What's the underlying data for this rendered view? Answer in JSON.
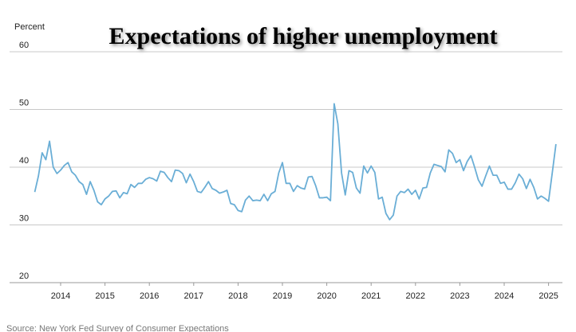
{
  "chart_data": {
    "type": "line",
    "title": "Expectations of higher unemployment",
    "y_label": "Percent",
    "source": "Source: New York Fed Survey of Consumer Expectations",
    "color": "#6aaed6",
    "grid": true,
    "ylim": [
      20,
      60
    ],
    "yticks": [
      20,
      30,
      40,
      50,
      60
    ],
    "categories": [
      null,
      null,
      null,
      null,
      null,
      null,
      null,
      "2014",
      null,
      null,
      null,
      null,
      null,
      null,
      null,
      null,
      null,
      null,
      null,
      "2015",
      null,
      null,
      null,
      null,
      null,
      null,
      null,
      null,
      null,
      null,
      null,
      "2016",
      null,
      null,
      null,
      null,
      null,
      null,
      null,
      null,
      null,
      null,
      null,
      "2017",
      null,
      null,
      null,
      null,
      null,
      null,
      null,
      null,
      null,
      null,
      null,
      "2018",
      null,
      null,
      null,
      null,
      null,
      null,
      null,
      null,
      null,
      null,
      null,
      "2019",
      null,
      null,
      null,
      null,
      null,
      null,
      null,
      null,
      null,
      null,
      null,
      "2020",
      null,
      null,
      null,
      null,
      null,
      null,
      null,
      null,
      null,
      null,
      null,
      "2021",
      null,
      null,
      null,
      null,
      null,
      null,
      null,
      null,
      null,
      null,
      null,
      "2022",
      null,
      null,
      null,
      null,
      null,
      null,
      null,
      null,
      null,
      null,
      null,
      "2023",
      null,
      null,
      null,
      null,
      null,
      null,
      null,
      null,
      null,
      null,
      null,
      "2024",
      null,
      null,
      null,
      null,
      null,
      null,
      null,
      null,
      null,
      null,
      null,
      "2025",
      null,
      null
    ],
    "values": [
      35.7,
      38.5,
      42.5,
      41.3,
      44.5,
      40.0,
      38.9,
      39.5,
      40.3,
      40.8,
      39.2,
      38.6,
      37.5,
      37.0,
      35.3,
      37.5,
      36.0,
      34.0,
      33.5,
      34.5,
      35.0,
      35.8,
      35.9,
      34.7,
      35.6,
      35.4,
      37.0,
      36.5,
      37.2,
      37.2,
      37.9,
      38.2,
      38.0,
      37.6,
      39.3,
      39.1,
      38.2,
      37.5,
      39.5,
      39.4,
      38.9,
      37.3,
      38.8,
      37.5,
      35.8,
      35.6,
      36.5,
      37.5,
      36.3,
      36.0,
      35.5,
      35.7,
      36.0,
      33.7,
      33.5,
      32.5,
      32.3,
      34.3,
      35.0,
      34.2,
      34.3,
      34.2,
      35.3,
      34.2,
      35.4,
      35.8,
      39.0,
      40.8,
      37.2,
      37.2,
      35.8,
      36.8,
      36.4,
      36.2,
      38.3,
      38.4,
      36.8,
      34.7,
      34.7,
      34.8,
      34.2,
      51.0,
      47.5,
      39.0,
      35.2,
      39.4,
      39.1,
      36.4,
      35.5,
      40.2,
      39.0,
      40.2,
      39.1,
      34.5,
      34.8,
      32.0,
      30.9,
      31.7,
      35.0,
      35.8,
      35.6,
      36.2,
      35.3,
      36.0,
      34.5,
      36.4,
      36.5,
      39.0,
      40.5,
      40.3,
      40.1,
      39.2,
      43.0,
      42.4,
      40.8,
      41.3,
      39.4,
      41.0,
      42.0,
      40.0,
      37.8,
      36.7,
      38.5,
      40.2,
      38.6,
      38.6,
      37.2,
      37.4,
      36.2,
      36.2,
      37.3,
      38.8,
      38.0,
      36.3,
      37.9,
      36.5,
      34.5,
      35.0,
      34.6,
      34.1,
      39.0,
      44.0
    ]
  }
}
